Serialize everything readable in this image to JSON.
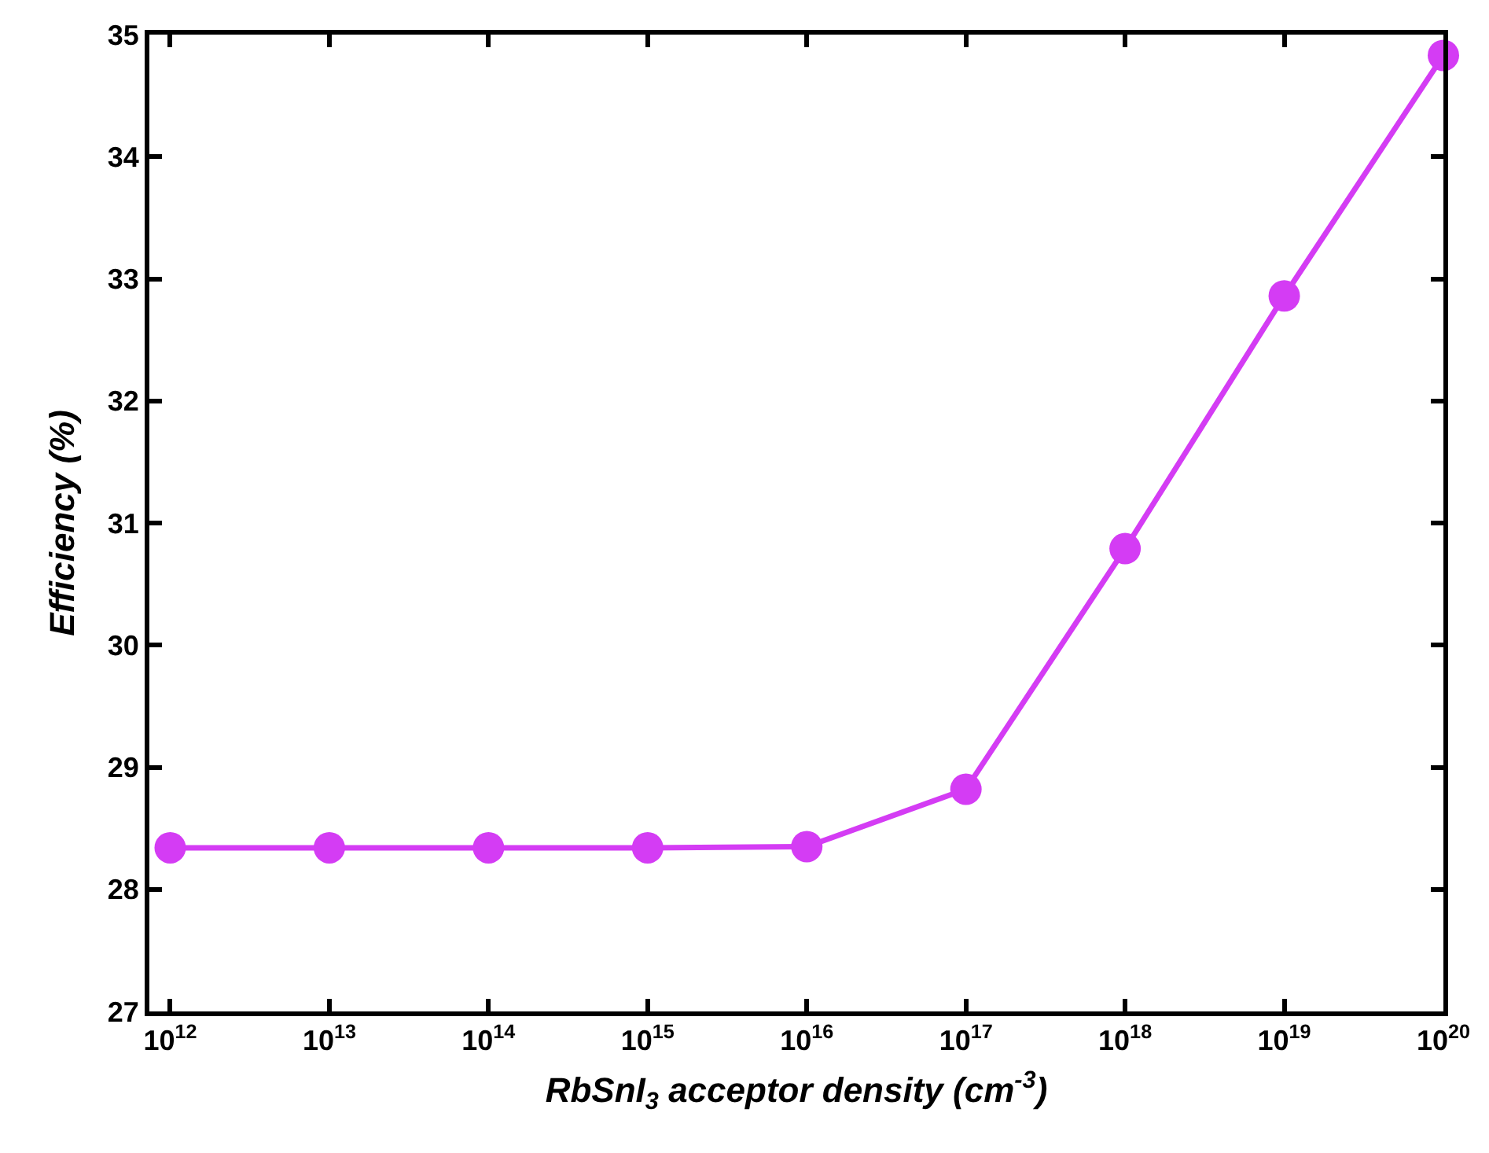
{
  "chart_data": {
    "type": "line",
    "xlabel": "RbSnI$_{3}$ acceptor density (cm$^{-3}$)",
    "ylabel": "Efficiency (%)",
    "x": [
      1000000000000.0,
      10000000000000.0,
      100000000000000.0,
      1000000000000000.0,
      1e+16,
      1e+17,
      1e+18,
      1e+19,
      1e+20
    ],
    "series": [
      {
        "color": "#d43cf4",
        "values": [
          28.34,
          28.34,
          28.34,
          28.34,
          28.35,
          28.82,
          30.79,
          32.86,
          34.83
        ]
      }
    ],
    "log": "x",
    "xlim": [
      740000000000.0,
      1e+20
    ],
    "xticks": [
      {
        "value": 1000000000000.0,
        "label": "10$^{12}$"
      },
      {
        "value": 10000000000000.0,
        "label": "10$^{13}$"
      },
      {
        "value": 100000000000000.0,
        "label": "10$^{14}$"
      },
      {
        "value": 1000000000000000.0,
        "label": "10$^{15}$"
      },
      {
        "value": 1e+16,
        "label": "10$^{16}$"
      },
      {
        "value": 1e+17,
        "label": "10$^{17}$"
      },
      {
        "value": 1e+18,
        "label": "10$^{18}$"
      },
      {
        "value": 1e+19,
        "label": "10$^{19}$"
      },
      {
        "value": 1e+20,
        "label": "10$^{20}$"
      }
    ],
    "ylim": [
      27,
      35
    ],
    "yticks": [
      27,
      28,
      29,
      30,
      31,
      32,
      33,
      34,
      35
    ],
    "marker": "circle",
    "line_style": "solid"
  }
}
